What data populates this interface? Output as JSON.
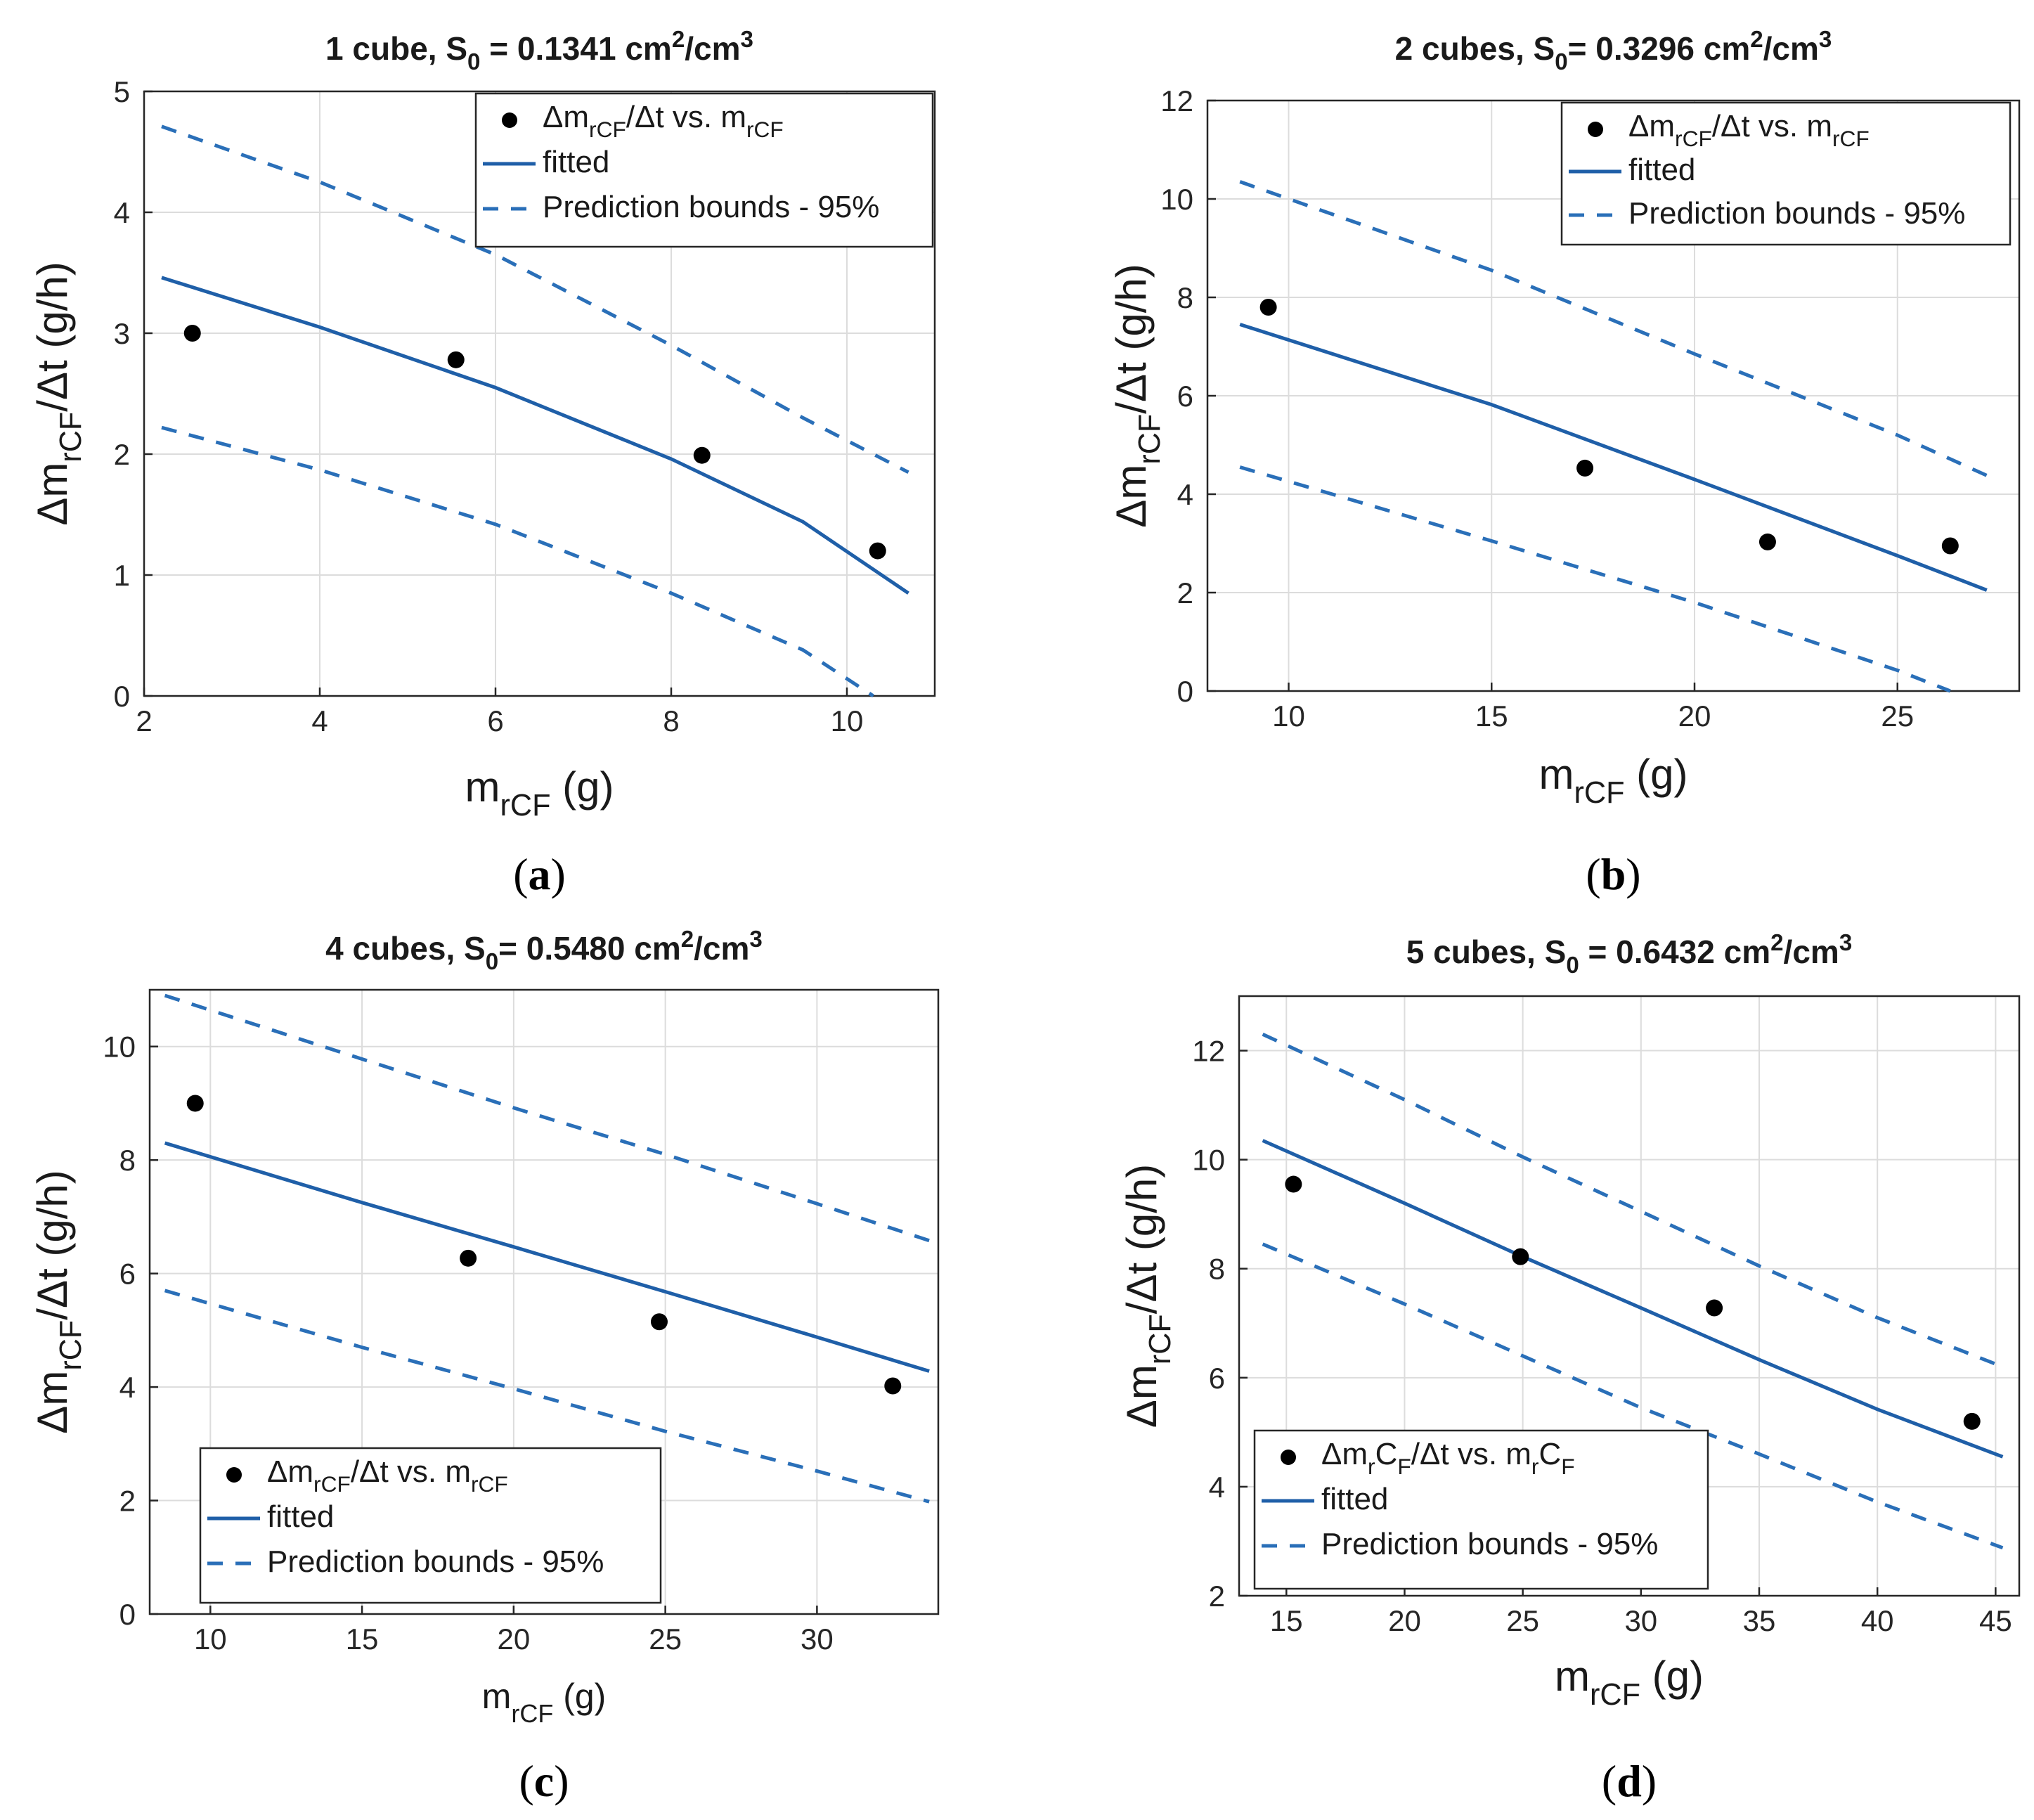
{
  "colors": {
    "fit": "#1f5fa8",
    "bounds": "#2a6fb8",
    "points": "#000000",
    "grid": "#dcdcdc"
  },
  "chart_data": [
    {
      "panel": "a",
      "type": "scatter",
      "title": {
        "main": "1 cube, S",
        "sub": "0",
        "rest": " = 0.1341 cm",
        "sup1": "2",
        "rest2": "/cm",
        "sup2": "3"
      },
      "xlabel": {
        "main": "m",
        "sub": "rCF",
        "rest": " (g)"
      },
      "ylabel": {
        "main": "Δm",
        "sub": "rCF",
        "rest": "/Δt (g/h)"
      },
      "xlim": [
        2,
        11
      ],
      "ylim": [
        0,
        5
      ],
      "xticks": [
        2,
        4,
        6,
        8,
        10
      ],
      "yticks": [
        0,
        1,
        2,
        3,
        4,
        5
      ],
      "grid": true,
      "legend_position": "top-right",
      "legend": [
        {
          "kind": "points",
          "parts": [
            "Δm",
            "rCF",
            "/Δt vs. m",
            "rCF"
          ]
        },
        {
          "kind": "fit",
          "parts": [
            "fitted"
          ]
        },
        {
          "kind": "bounds",
          "parts": [
            "Prediction bounds - 95%"
          ]
        }
      ],
      "points": [
        [
          2.55,
          3.0
        ],
        [
          5.55,
          2.78
        ],
        [
          8.35,
          1.99
        ],
        [
          10.35,
          1.2
        ]
      ],
      "fitted": [
        [
          2.2,
          3.46
        ],
        [
          4,
          3.05
        ],
        [
          6,
          2.55
        ],
        [
          8,
          1.96
        ],
        [
          9.5,
          1.44
        ],
        [
          10.7,
          0.85
        ]
      ],
      "upper": [
        [
          2.2,
          4.71
        ],
        [
          4,
          4.25
        ],
        [
          6,
          3.65
        ],
        [
          8,
          2.9
        ],
        [
          9.5,
          2.3
        ],
        [
          10.7,
          1.85
        ]
      ],
      "lower": [
        [
          2.2,
          2.22
        ],
        [
          4,
          1.87
        ],
        [
          6,
          1.42
        ],
        [
          8,
          0.85
        ],
        [
          9.5,
          0.38
        ],
        [
          10.3,
          0.0
        ]
      ],
      "label": "(a)"
    },
    {
      "panel": "b",
      "type": "scatter",
      "title": {
        "main": "2 cubes, S",
        "sub": "0",
        "rest": "= 0.3296 cm",
        "sup1": "2",
        "rest2": "/cm",
        "sup2": "3"
      },
      "xlabel": {
        "main": "m",
        "sub": "rCF",
        "rest": " (g)"
      },
      "ylabel": {
        "main": "Δm",
        "sub": "rCF",
        "rest": "/Δt (g/h)"
      },
      "xlim": [
        8,
        28
      ],
      "ylim": [
        0,
        12
      ],
      "xticks": [
        10,
        15,
        20,
        25
      ],
      "yticks": [
        0,
        2,
        4,
        6,
        8,
        10,
        12
      ],
      "grid": true,
      "legend_position": "top-right",
      "legend": [
        {
          "kind": "points",
          "parts": [
            "Δm",
            "rCF",
            "/Δt vs. m",
            "rCF"
          ]
        },
        {
          "kind": "fit",
          "parts": [
            "fitted"
          ]
        },
        {
          "kind": "bounds",
          "parts": [
            "Prediction bounds - 95%"
          ]
        }
      ],
      "points": [
        [
          9.5,
          7.8
        ],
        [
          17.3,
          4.53
        ],
        [
          21.8,
          3.03
        ],
        [
          26.3,
          2.95
        ]
      ],
      "fitted": [
        [
          8.8,
          7.45
        ],
        [
          15,
          5.82
        ],
        [
          20,
          4.3
        ],
        [
          25,
          2.75
        ],
        [
          27.2,
          2.05
        ]
      ],
      "upper": [
        [
          8.8,
          10.35
        ],
        [
          15,
          8.55
        ],
        [
          20,
          6.85
        ],
        [
          25,
          5.2
        ],
        [
          27.2,
          4.38
        ]
      ],
      "lower": [
        [
          8.8,
          4.55
        ],
        [
          15,
          3.05
        ],
        [
          20,
          1.8
        ],
        [
          25,
          0.42
        ],
        [
          26.3,
          0.0
        ]
      ],
      "label": "(b)"
    },
    {
      "panel": "c",
      "type": "scatter",
      "title": {
        "main": "4 cubes, S",
        "sub": "0",
        "rest": "= 0.5480 cm",
        "sup1": "2",
        "rest2": "/cm",
        "sup2": "3"
      },
      "xlabel": {
        "main": "m",
        "sub": "rCF",
        "rest": " (g)"
      },
      "ylabel": {
        "main": "Δm",
        "sub": "rCF",
        "rest": "/Δt (g/h)"
      },
      "xlim": [
        8,
        34
      ],
      "ylim": [
        0,
        11
      ],
      "xticks": [
        10,
        15,
        20,
        25,
        30
      ],
      "yticks": [
        0,
        2,
        4,
        6,
        8,
        10
      ],
      "grid": true,
      "legend_position": "bottom-left",
      "legend": [
        {
          "kind": "points",
          "parts": [
            "Δm",
            "rCF",
            "/Δt vs. m",
            "rCF"
          ]
        },
        {
          "kind": "fit",
          "parts": [
            "fitted"
          ]
        },
        {
          "kind": "bounds",
          "parts": [
            "Prediction bounds - 95%"
          ]
        }
      ],
      "points": [
        [
          9.5,
          9.0
        ],
        [
          18.5,
          6.27
        ],
        [
          24.8,
          5.15
        ],
        [
          32.5,
          4.02
        ]
      ],
      "fitted": [
        [
          8.5,
          8.3
        ],
        [
          15,
          7.25
        ],
        [
          20,
          6.47
        ],
        [
          25,
          5.68
        ],
        [
          30,
          4.88
        ],
        [
          33.7,
          4.28
        ]
      ],
      "upper": [
        [
          8.5,
          10.9
        ],
        [
          15,
          9.78
        ],
        [
          20,
          8.92
        ],
        [
          25,
          8.1
        ],
        [
          30,
          7.23
        ],
        [
          33.7,
          6.58
        ]
      ],
      "lower": [
        [
          8.5,
          5.7
        ],
        [
          15,
          4.7
        ],
        [
          20,
          3.97
        ],
        [
          25,
          3.22
        ],
        [
          30,
          2.52
        ],
        [
          33.7,
          1.98
        ]
      ],
      "label": "(c)"
    },
    {
      "panel": "d",
      "type": "scatter",
      "title": {
        "main": "5 cubes, S",
        "sub": "0",
        "rest": " = 0.6432 cm",
        "sup1": "2",
        "rest2": "/cm",
        "sup2": "3"
      },
      "xlabel": {
        "main": "m",
        "sub": "rCF",
        "rest": " (g)"
      },
      "ylabel": {
        "main": "Δm",
        "sub": "rCF",
        "rest": "/Δt (g/h)"
      },
      "xlim": [
        13,
        46
      ],
      "ylim": [
        2,
        13
      ],
      "xticks": [
        15,
        20,
        25,
        30,
        35,
        40,
        45
      ],
      "yticks": [
        2,
        4,
        6,
        8,
        10,
        12
      ],
      "grid": true,
      "legend_position": "bottom-left",
      "legend": [
        {
          "kind": "points",
          "parts": [
            "Δm",
            "r",
            "C",
            "F",
            "/Δt vs. m",
            "r",
            "C",
            "F"
          ]
        },
        {
          "kind": "fit",
          "parts": [
            "fitted"
          ]
        },
        {
          "kind": "bounds",
          "parts": [
            "Prediction bounds - 95%"
          ]
        }
      ],
      "points": [
        [
          15.3,
          9.55
        ],
        [
          24.9,
          8.22
        ],
        [
          33.1,
          7.28
        ],
        [
          44.0,
          5.2
        ]
      ],
      "fitted": [
        [
          14,
          10.35
        ],
        [
          20,
          9.2
        ],
        [
          25,
          8.22
        ],
        [
          30,
          7.28
        ],
        [
          35,
          6.33
        ],
        [
          40,
          5.42
        ],
        [
          45.3,
          4.55
        ]
      ],
      "upper": [
        [
          14,
          12.3
        ],
        [
          20,
          11.1
        ],
        [
          25,
          10.05
        ],
        [
          30,
          9.05
        ],
        [
          35,
          8.05
        ],
        [
          40,
          7.1
        ],
        [
          45.3,
          6.2
        ]
      ],
      "lower": [
        [
          14,
          8.45
        ],
        [
          20,
          7.35
        ],
        [
          25,
          6.4
        ],
        [
          30,
          5.45
        ],
        [
          35,
          4.6
        ],
        [
          40,
          3.72
        ],
        [
          45.3,
          2.88
        ]
      ],
      "label": "(d)"
    }
  ]
}
